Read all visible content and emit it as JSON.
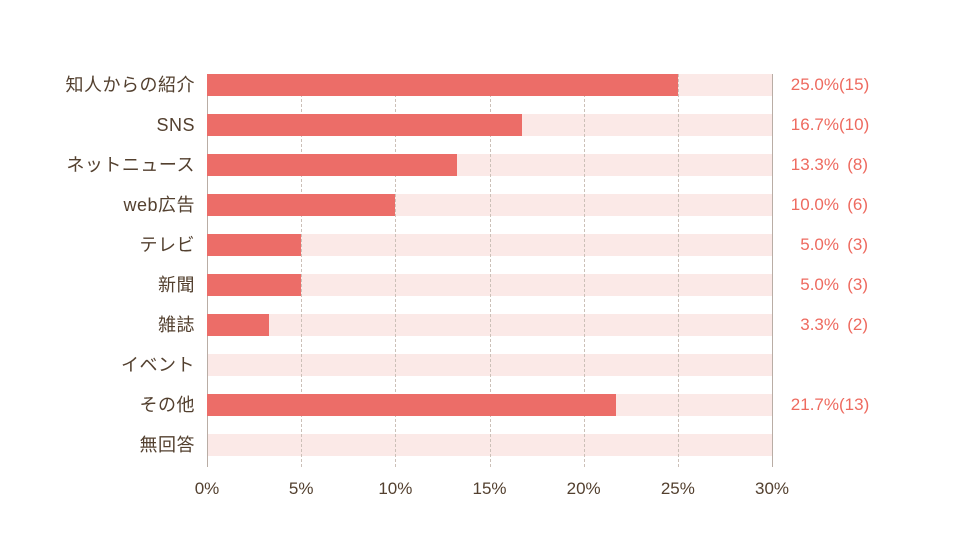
{
  "chart_data": {
    "type": "bar",
    "orientation": "horizontal",
    "title": "",
    "xlabel": "",
    "ylabel": "",
    "categories": [
      "知人からの紹介",
      "SNS",
      "ネットニュース",
      "web広告",
      "テレビ",
      "新聞",
      "雑誌",
      "イベント",
      "その他",
      "無回答"
    ],
    "values": [
      25.0,
      16.7,
      13.3,
      10.0,
      5.0,
      5.0,
      3.3,
      0,
      21.7,
      0
    ],
    "counts": [
      15,
      10,
      8,
      6,
      3,
      3,
      2,
      0,
      13,
      0
    ],
    "pct_labels": [
      "25.0%",
      "16.7%",
      "13.3%",
      "10.0%",
      "5.0%",
      "5.0%",
      "3.3%",
      "",
      "21.7%",
      ""
    ],
    "count_labels": [
      "(15)",
      "(10)",
      "(8)",
      "(6)",
      "(3)",
      "(3)",
      "(2)",
      "",
      "(13)",
      ""
    ],
    "xlim": [
      0,
      30
    ],
    "x_ticks": [
      "0%",
      "5%",
      "10%",
      "15%",
      "20%",
      "25%",
      "30%"
    ],
    "grid": "vertical-dashed-at-5pct-steps",
    "legend": "none"
  },
  "colors": {
    "bar": "#ec6d68",
    "track": "#fbe9e7",
    "category_text": "#53402f",
    "value_text": "#ee6a5f",
    "gridline_dashed": "#ccc0b8",
    "axis_line": "#b9ada5",
    "background": "#ffffff"
  }
}
